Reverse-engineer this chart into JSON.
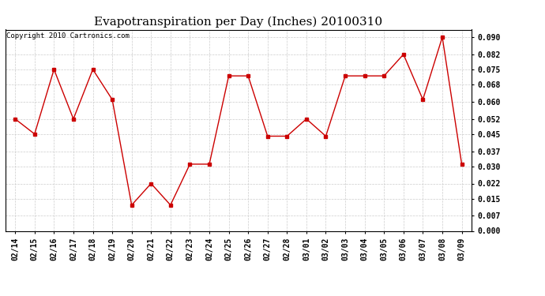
{
  "title": "Evapotranspiration per Day (Inches) 20100310",
  "copyright": "Copyright 2010 Cartronics.com",
  "dates": [
    "02/14",
    "02/15",
    "02/16",
    "02/17",
    "02/18",
    "02/19",
    "02/20",
    "02/21",
    "02/22",
    "02/23",
    "02/24",
    "02/25",
    "02/26",
    "02/27",
    "02/28",
    "03/01",
    "03/02",
    "03/03",
    "03/04",
    "03/05",
    "03/06",
    "03/07",
    "03/08",
    "03/09"
  ],
  "values": [
    0.052,
    0.045,
    0.075,
    0.052,
    0.075,
    0.061,
    0.012,
    0.022,
    0.012,
    0.031,
    0.031,
    0.072,
    0.072,
    0.044,
    0.044,
    0.052,
    0.044,
    0.072,
    0.072,
    0.072,
    0.082,
    0.061,
    0.09,
    0.031
  ],
  "line_color": "#cc0000",
  "marker": "s",
  "marker_size": 2.5,
  "ylim": [
    0.0,
    0.0935
  ],
  "yticks": [
    0.0,
    0.007,
    0.015,
    0.022,
    0.03,
    0.037,
    0.045,
    0.052,
    0.06,
    0.068,
    0.075,
    0.082,
    0.09
  ],
  "grid_color": "#cccccc",
  "plot_bg_color": "#ffffff",
  "title_fontsize": 11,
  "tick_fontsize": 7,
  "copyright_fontsize": 6.5
}
